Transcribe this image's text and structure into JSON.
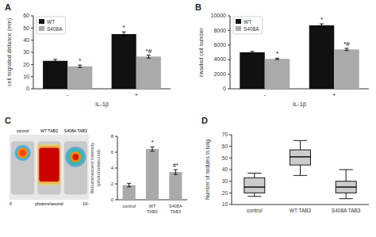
{
  "chart_data": [
    {
      "type": "bar",
      "title": "A",
      "xlabel": "IL-1β",
      "ylabel": "cell migrated distance (mm)",
      "categories": [
        "-",
        "+"
      ],
      "series": [
        {
          "name": "WT",
          "color": "#111111",
          "values": [
            23,
            45
          ],
          "errors": [
            1.2,
            1.8
          ]
        },
        {
          "name": "S408A",
          "color": "#aaaaaa",
          "values": [
            18.5,
            26.5
          ],
          "errors": [
            1.0,
            1.2
          ]
        }
      ],
      "ylim": [
        0,
        60
      ],
      "yticks": [
        0,
        10,
        20,
        30,
        40,
        50,
        60
      ],
      "legend": "upper left",
      "grid": false,
      "annotations": [
        {
          "text": "*",
          "category": "-",
          "series": "S408A"
        },
        {
          "text": "*",
          "category": "+",
          "series": "WT"
        },
        {
          "text": "*#",
          "category": "+",
          "series": "S408A"
        }
      ]
    },
    {
      "type": "bar",
      "title": "B",
      "xlabel": "IL-1β",
      "ylabel": "invaded cell number",
      "categories": [
        "-",
        "+"
      ],
      "series": [
        {
          "name": "WT",
          "color": "#111111",
          "values": [
            5000,
            8700
          ],
          "errors": [
            120,
            200
          ]
        },
        {
          "name": "S408A",
          "color": "#aaaaaa",
          "values": [
            4100,
            5400
          ],
          "errors": [
            100,
            150
          ]
        }
      ],
      "ylim": [
        0,
        10000
      ],
      "yticks": [
        0,
        2000,
        4000,
        6000,
        8000,
        10000
      ],
      "legend": "upper left",
      "grid": false,
      "annotations": [
        {
          "text": "*",
          "category": "-",
          "series": "S408A"
        },
        {
          "text": "*",
          "category": "+",
          "series": "WT"
        },
        {
          "text": "*#",
          "category": "+",
          "series": "S408A"
        }
      ]
    },
    {
      "type": "image",
      "title": "C",
      "categories": [
        "control",
        "WT TAB3",
        "S408A TAB3"
      ],
      "annotations": [
        "0",
        "photons/second",
        "10⁵"
      ]
    },
    {
      "type": "bar",
      "ylabel": "Bioluminescent Intensity\n(photons/second)",
      "categories": [
        "control",
        "WT TAB3",
        "S408A TAB3"
      ],
      "values": [
        1.85,
        6.4,
        3.5
      ],
      "errors": [
        0.22,
        0.28,
        0.3
      ],
      "color": "#aaaaaa",
      "ylim": [
        0,
        8
      ],
      "yticks": [
        0,
        2,
        4,
        6,
        8
      ],
      "grid": false,
      "annotations": [
        {
          "text": "*",
          "category": "WT TAB3"
        },
        {
          "text": "#*",
          "category": "S408A TAB3"
        }
      ]
    },
    {
      "type": "box",
      "title": "D",
      "ylabel": "Number of nodules in lung",
      "categories": [
        "control",
        "WT TAB3",
        "S408A TAB3"
      ],
      "medians": [
        25,
        51,
        25
      ],
      "q1": [
        20,
        44,
        20
      ],
      "q3": [
        33,
        57,
        30
      ],
      "whisker_low": [
        17,
        35,
        15
      ],
      "whisker_high": [
        37,
        65,
        40
      ],
      "color": "#cccccc",
      "ylim": [
        10,
        70
      ],
      "yticks": [
        10,
        20,
        30,
        40,
        50,
        60,
        70
      ],
      "grid": false
    }
  ]
}
